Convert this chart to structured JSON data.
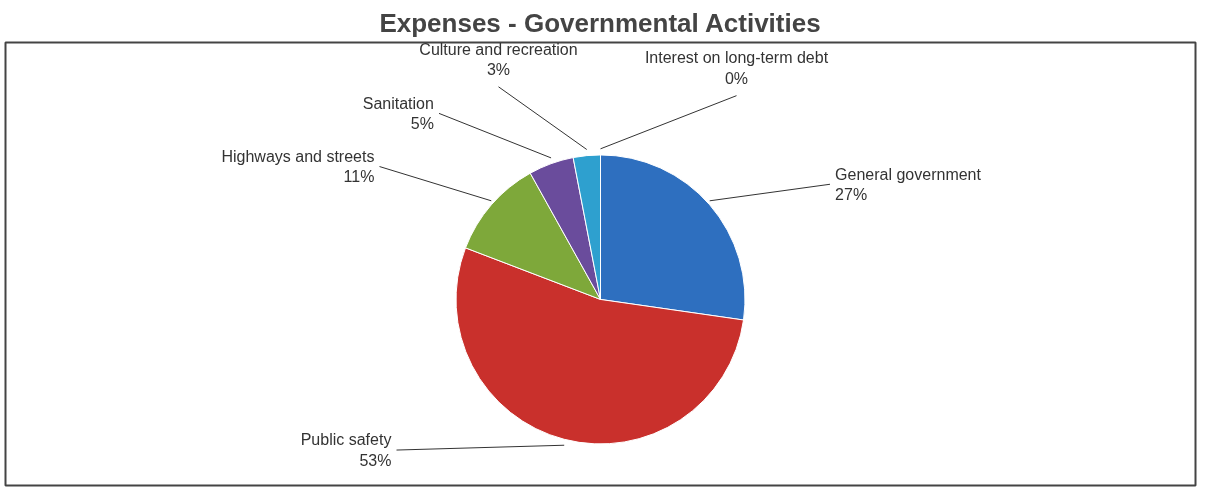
{
  "chart_data": {
    "type": "pie",
    "title": "Expenses - Governmental Activities",
    "categories": [
      "General government",
      "Public safety",
      "Highways and streets",
      "Sanitation",
      "Culture and recreation",
      "Interest on long-term debt"
    ],
    "values": [
      27,
      53,
      11,
      5,
      3,
      0
    ],
    "value_labels": [
      "27%",
      "53%",
      "11%",
      "5%",
      "3%",
      "0%"
    ],
    "colors": [
      "#2e6fbf",
      "#c9302c",
      "#7ea83a",
      "#6a4c9c",
      "#2ea0cf",
      "#e87a20"
    ]
  }
}
